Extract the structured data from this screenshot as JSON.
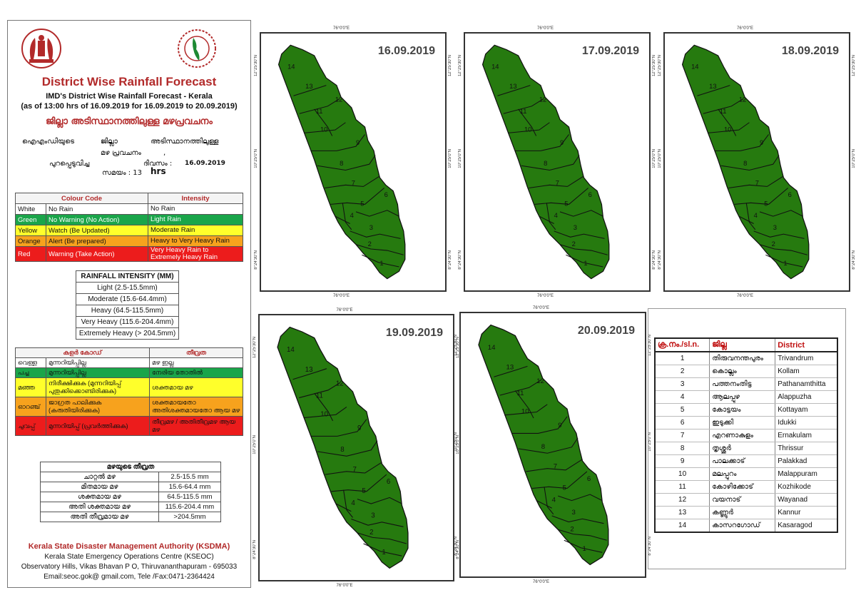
{
  "header": {
    "title": "District Wise Rainfall Forecast",
    "subtitle1": "IMD's District Wise Rainfall Forecast - Kerala",
    "subtitle2": "(as of 13:00 hrs of 16.09.2019  for 16.09.2019  to 20.09.2019)",
    "mal_title": "ജില്ലാ അടിസ്ഥാനത്തിലുള്ള മഴപ്രവചനം",
    "mal_line1a": "ഐഎംഡിയുടെ",
    "mal_line1b": "ജില്ലാ",
    "mal_line1c": "അടിസ്ഥാനത്തിലുള്ള",
    "mal_line2a": "മഴ പ്രവചനം",
    "mal_line2b": ",",
    "mal_line3a": "പുറപ്പെടുവിച്ച",
    "mal_line3b": "ദിവസം :",
    "mal_line3c": "16.09.2019",
    "mal_line4a": "സമയം : 13",
    "mal_line4b": "hrs"
  },
  "colour_code": {
    "head_code": "Colour Code",
    "head_intensity": "Intensity",
    "rows": [
      {
        "colour": "White",
        "meaning": "No Rain",
        "intensity": "No Rain",
        "bg": "#ffffff",
        "fg": "#111111"
      },
      {
        "colour": "Green",
        "meaning": "No Warning (No Action)",
        "intensity": "Light Rain",
        "bg": "#1aa54a",
        "fg": "#ffffff"
      },
      {
        "colour": "Yellow",
        "meaning": "Watch (Be Updated)",
        "intensity": "Moderate Rain",
        "bg": "#ffff2b",
        "fg": "#111111"
      },
      {
        "colour": "Orange",
        "meaning": "Alert (Be prepared)",
        "intensity": "Heavy to Very Heavy Rain",
        "bg": "#f7a21d",
        "fg": "#111111"
      },
      {
        "colour": "Red",
        "meaning": "Warning (Take Action)",
        "intensity": "Very Heavy Rain to Extremely Heavy Rain",
        "bg": "#ec1c1c",
        "fg": "#ffffff"
      }
    ]
  },
  "rainfall_intensity": {
    "head": "RAINFALL INTENSITY (MM)",
    "rows": [
      "Light (2.5-15.5mm)",
      "Moderate (15.6-64.4mm)",
      "Heavy (64.5-115.5mm)",
      "Very Heavy (115.6-204.4mm)",
      "Extremely Heavy (> 204.5mm)"
    ]
  },
  "mal_colour_code": {
    "head_code": "കളർ കോഡ്",
    "head_intensity": "തീവ്രത",
    "rows": [
      {
        "colour": "വെള്ള",
        "meaning": "മുന്നറിയിപ്പില്ല",
        "intensity": "മഴ ഇല്ല",
        "bg": "#ffffff"
      },
      {
        "colour": "പച്ച",
        "meaning": "മുന്നറിയിപ്പില്ല",
        "intensity": "നേരിയ തോതിൽ",
        "bg": "#1aa54a"
      },
      {
        "colour": "മഞ്ഞ",
        "meaning": "നിരീക്ഷിക്കുക (മുന്നറിയിപ്പ് പുതുക്കിക്കൊണ്ടിരിക്കുക)",
        "intensity": "ശക്തമായ മഴ",
        "bg": "#ffff2b"
      },
      {
        "colour": "ഓറഞ്ച്",
        "meaning": "ജാഗ്രത പാലിക്കുക (കരുതിയിരിക്കുക)",
        "intensity": "ശക്തമായതോ അതിശക്തമായതോ ആയ മഴ",
        "bg": "#f7a21d"
      },
      {
        "colour": "ചുവപ്പ്",
        "meaning": "മുന്നറിയിപ്പ് (പ്രവർത്തിക്കുക)",
        "intensity": "തീവ്രമഴ / അതിതീവ്രമഴ ആയ മഴ",
        "bg": "#ec1c1c"
      }
    ]
  },
  "mal_intensity": {
    "head": "മഴയുടെ തീവ്രത",
    "rows": [
      {
        "name": "ചാറ്റൽ മഴ",
        "range": "2.5-15.5 mm"
      },
      {
        "name": "മിതമായ മഴ",
        "range": "15.6-64.4 mm"
      },
      {
        "name": "ശക്തമായ മഴ",
        "range": "64.5-115.5 mm"
      },
      {
        "name": "അതി ശക്തമായ മഴ",
        "range": "115.6-204.4 mm"
      },
      {
        "name": "അതി തീവ്രമായ മഴ",
        "range": ">204.5mm"
      }
    ]
  },
  "footer": {
    "org": "Kerala State Disaster Management Authority (KSDMA)",
    "centre": "Kerala State Emergency Operations Centre (KSEOC)",
    "address": "Observatory Hills, Vikas Bhavan P O, Thiruvananthapuram - 695033",
    "contact": "Email:seoc.gok@ gmail.com, Tele /Fax:0471-2364424"
  },
  "coords": {
    "lon": "76°0'0\"E",
    "lat_top": "12°25'30\"N",
    "lat_mid": "10°25'0\"N",
    "lat_bot": "8°24'30\"N"
  },
  "maps": [
    {
      "date": "16.09.2019"
    },
    {
      "date": "17.09.2019"
    },
    {
      "date": "18.09.2019"
    },
    {
      "date": "19.09.2019"
    },
    {
      "date": "20.09.2019"
    }
  ],
  "map_fill": "#267a0f",
  "district_numbers": [
    "14",
    "13",
    "12",
    "11",
    "10",
    "9",
    "8",
    "7",
    "6",
    "5",
    "4",
    "3",
    "2",
    "1"
  ],
  "districts": {
    "head_no": "ക്ര.നം./sl.n.",
    "head_mal": "ജില്ല",
    "head_en": "District",
    "rows": [
      {
        "no": "1",
        "mal": "തിരുവനന്തപുരം",
        "en": "Trivandrum"
      },
      {
        "no": "2",
        "mal": "കൊല്ലം",
        "en": "Kollam"
      },
      {
        "no": "3",
        "mal": "പത്തനംതിട്ട",
        "en": "Pathanamthitta"
      },
      {
        "no": "4",
        "mal": "ആലപ്പുഴ",
        "en": "Alappuzha"
      },
      {
        "no": "5",
        "mal": "കോട്ടയം",
        "en": "Kottayam"
      },
      {
        "no": "6",
        "mal": "ഇടുക്കി",
        "en": "Idukki"
      },
      {
        "no": "7",
        "mal": "എറണാകുളം",
        "en": "Ernakulam"
      },
      {
        "no": "8",
        "mal": "തൃശ്ശൂർ",
        "en": "Thrissur"
      },
      {
        "no": "9",
        "mal": "പാലക്കാട്",
        "en": "Palakkad"
      },
      {
        "no": "10",
        "mal": "മലപ്പുറം",
        "en": "Malappuram"
      },
      {
        "no": "11",
        "mal": "കോഴിക്കോട്",
        "en": "Kozhikode"
      },
      {
        "no": "12",
        "mal": "വയനാട്",
        "en": "Wayanad"
      },
      {
        "no": "13",
        "mal": "കണ്ണൂർ",
        "en": "Kannur"
      },
      {
        "no": "14",
        "mal": "കാസറഗോഡ്",
        "en": "Kasaragod"
      }
    ]
  }
}
